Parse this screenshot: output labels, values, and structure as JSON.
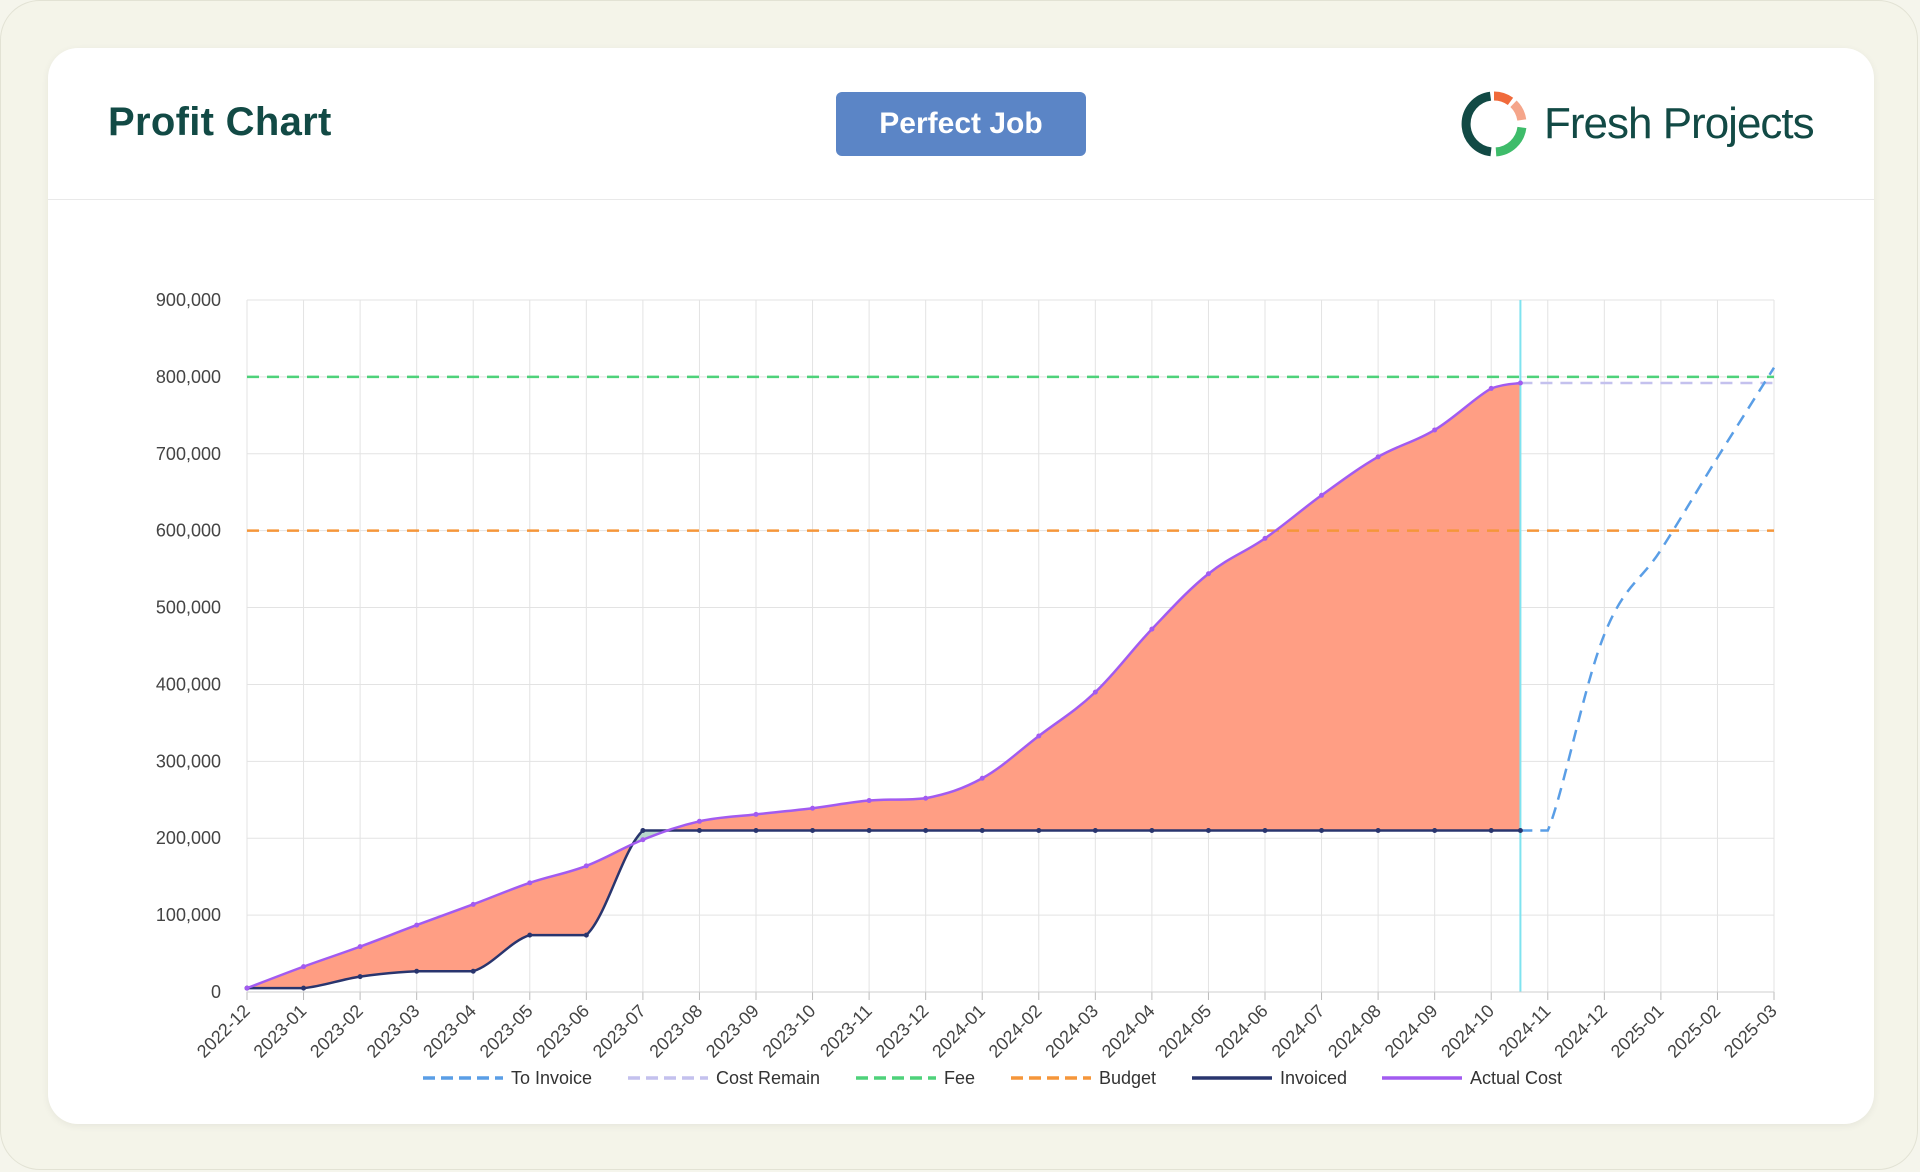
{
  "header": {
    "title": "Profit Chart",
    "badge_label": "Perfect Job",
    "logo_text": "Fresh Projects"
  },
  "colors": {
    "title": "#124a45",
    "badge_bg": "#5b85c6",
    "loss_fill": "#ff9e84",
    "gain_fill": "#b8d8cc",
    "today_line": "#7fe3f0"
  },
  "chart_data": {
    "type": "line",
    "categories": [
      "2022-12",
      "2023-01",
      "2023-02",
      "2023-03",
      "2023-04",
      "2023-05",
      "2023-06",
      "2023-07",
      "2023-08",
      "2023-09",
      "2023-10",
      "2023-11",
      "2023-12",
      "2024-01",
      "2024-02",
      "2024-03",
      "2024-04",
      "2024-05",
      "2024-06",
      "2024-07",
      "2024-08",
      "2024-09",
      "2024-10",
      "2024-11",
      "2024-12",
      "2025-01",
      "2025-02",
      "2025-03"
    ],
    "ylim": [
      0,
      900000
    ],
    "yticks": [
      0,
      100000,
      200000,
      300000,
      400000,
      500000,
      600000,
      700000,
      800000,
      900000
    ],
    "ytick_labels": [
      "0",
      "100,000",
      "200,000",
      "300,000",
      "400,000",
      "500,000",
      "600,000",
      "700,000",
      "800,000",
      "900,000"
    ],
    "grid": true,
    "legend_position": "bottom",
    "today_marker": "2024-10-17",
    "series": [
      {
        "name": "To Invoice",
        "color": "#5a9ee6",
        "dash": "dashed",
        "points": [
          {
            "x": "2024-10-17",
            "y": 210000
          },
          {
            "x": "2024-11-01",
            "y": 210000
          },
          {
            "x": "2024-12-01",
            "y": 465000
          },
          {
            "x": "2025-01-01",
            "y": 575000
          },
          {
            "x": "2025-02-01",
            "y": 695000
          },
          {
            "x": "2025-03-01",
            "y": 812000
          }
        ]
      },
      {
        "name": "Cost Remain",
        "color": "#c4c1ee",
        "dash": "dashed",
        "points": [
          {
            "x": "2024-10-17",
            "y": 792000
          },
          {
            "x": "2025-03-01",
            "y": 792000
          }
        ]
      },
      {
        "name": "Fee",
        "color": "#4ed27a",
        "dash": "dashed",
        "value": 800000
      },
      {
        "name": "Budget",
        "color": "#f5963a",
        "dash": "dashed",
        "value": 600000
      },
      {
        "name": "Invoiced",
        "color": "#29356e",
        "dash": "solid",
        "points": [
          {
            "x": "2022-12-01",
            "y": 5000
          },
          {
            "x": "2023-01-01",
            "y": 5000
          },
          {
            "x": "2023-02-01",
            "y": 20000
          },
          {
            "x": "2023-03-01",
            "y": 27000
          },
          {
            "x": "2023-04-01",
            "y": 27000
          },
          {
            "x": "2023-05-01",
            "y": 74000
          },
          {
            "x": "2023-06-01",
            "y": 74000
          },
          {
            "x": "2023-07-01",
            "y": 210000
          },
          {
            "x": "2023-08-01",
            "y": 210000
          },
          {
            "x": "2023-09-01",
            "y": 210000
          },
          {
            "x": "2023-10-01",
            "y": 210000
          },
          {
            "x": "2023-11-01",
            "y": 210000
          },
          {
            "x": "2023-12-01",
            "y": 210000
          },
          {
            "x": "2024-01-01",
            "y": 210000
          },
          {
            "x": "2024-02-01",
            "y": 210000
          },
          {
            "x": "2024-03-01",
            "y": 210000
          },
          {
            "x": "2024-04-01",
            "y": 210000
          },
          {
            "x": "2024-05-01",
            "y": 210000
          },
          {
            "x": "2024-06-01",
            "y": 210000
          },
          {
            "x": "2024-07-01",
            "y": 210000
          },
          {
            "x": "2024-08-01",
            "y": 210000
          },
          {
            "x": "2024-09-01",
            "y": 210000
          },
          {
            "x": "2024-10-01",
            "y": 210000
          },
          {
            "x": "2024-10-17",
            "y": 210000
          }
        ]
      },
      {
        "name": "Actual Cost",
        "color": "#a25bf0",
        "dash": "solid",
        "points": [
          {
            "x": "2022-12-01",
            "y": 5000
          },
          {
            "x": "2023-01-01",
            "y": 33000
          },
          {
            "x": "2023-02-01",
            "y": 59000
          },
          {
            "x": "2023-03-01",
            "y": 87000
          },
          {
            "x": "2023-04-01",
            "y": 114000
          },
          {
            "x": "2023-05-01",
            "y": 142000
          },
          {
            "x": "2023-06-01",
            "y": 164000
          },
          {
            "x": "2023-07-01",
            "y": 198000
          },
          {
            "x": "2023-08-01",
            "y": 222000
          },
          {
            "x": "2023-09-01",
            "y": 231000
          },
          {
            "x": "2023-10-01",
            "y": 239000
          },
          {
            "x": "2023-11-01",
            "y": 249000
          },
          {
            "x": "2023-12-01",
            "y": 252000
          },
          {
            "x": "2024-01-01",
            "y": 278000
          },
          {
            "x": "2024-02-01",
            "y": 333000
          },
          {
            "x": "2024-03-01",
            "y": 390000
          },
          {
            "x": "2024-04-01",
            "y": 472000
          },
          {
            "x": "2024-05-01",
            "y": 544000
          },
          {
            "x": "2024-06-01",
            "y": 590000
          },
          {
            "x": "2024-07-01",
            "y": 646000
          },
          {
            "x": "2024-08-01",
            "y": 696000
          },
          {
            "x": "2024-09-01",
            "y": 731000
          },
          {
            "x": "2024-10-01",
            "y": 785000
          },
          {
            "x": "2024-10-17",
            "y": 792000
          }
        ]
      }
    ],
    "legend": [
      "To Invoice",
      "Cost Remain",
      "Fee",
      "Budget",
      "Invoiced",
      "Actual Cost"
    ]
  }
}
